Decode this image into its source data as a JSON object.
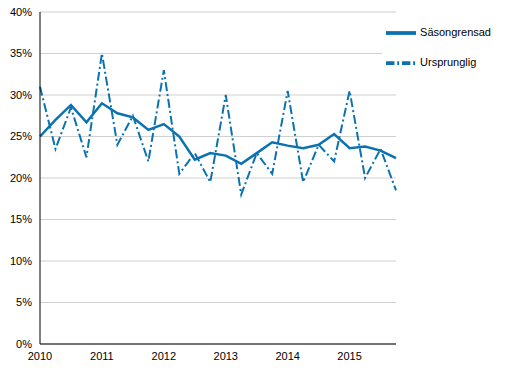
{
  "chart_data": {
    "type": "line",
    "categories": [
      "2010",
      null,
      null,
      null,
      "2011",
      null,
      null,
      null,
      "2012",
      null,
      null,
      null,
      "2013",
      null,
      null,
      null,
      "2014",
      null,
      null,
      null,
      "2015",
      null,
      null,
      null
    ],
    "series": [
      {
        "name": "Ursprunglig",
        "color": "#0a72b0",
        "line_style": "dashdot",
        "values": [
          31,
          23.5,
          28.5,
          22.5,
          35,
          24,
          27.5,
          22,
          33,
          20.5,
          23,
          19.5,
          30,
          18,
          23,
          20.5,
          30.5,
          19.5,
          24,
          22,
          30.5,
          20,
          23.5,
          18.5
        ]
      },
      {
        "name": "Säsongrensad",
        "color": "#0a72b0",
        "line_style": "solid",
        "values": [
          25,
          27,
          28.8,
          26.7,
          29,
          27.8,
          27.3,
          25.8,
          26.5,
          25,
          22.2,
          23,
          22.7,
          21.7,
          23,
          24.3,
          23.9,
          23.6,
          24,
          25.3,
          23.6,
          23.8,
          23.3,
          22.4
        ]
      }
    ],
    "ylim": [
      0,
      40
    ],
    "yticks": [
      {
        "value": 0,
        "label": "0%"
      },
      {
        "value": 5,
        "label": "5%"
      },
      {
        "value": 10,
        "label": "10%"
      },
      {
        "value": 15,
        "label": "15%"
      },
      {
        "value": 20,
        "label": "20%"
      },
      {
        "value": 25,
        "label": "25%"
      },
      {
        "value": 30,
        "label": "30%"
      },
      {
        "value": 35,
        "label": "35%"
      },
      {
        "value": 40,
        "label": "40%"
      }
    ],
    "grid": true,
    "legend": "top-right"
  }
}
